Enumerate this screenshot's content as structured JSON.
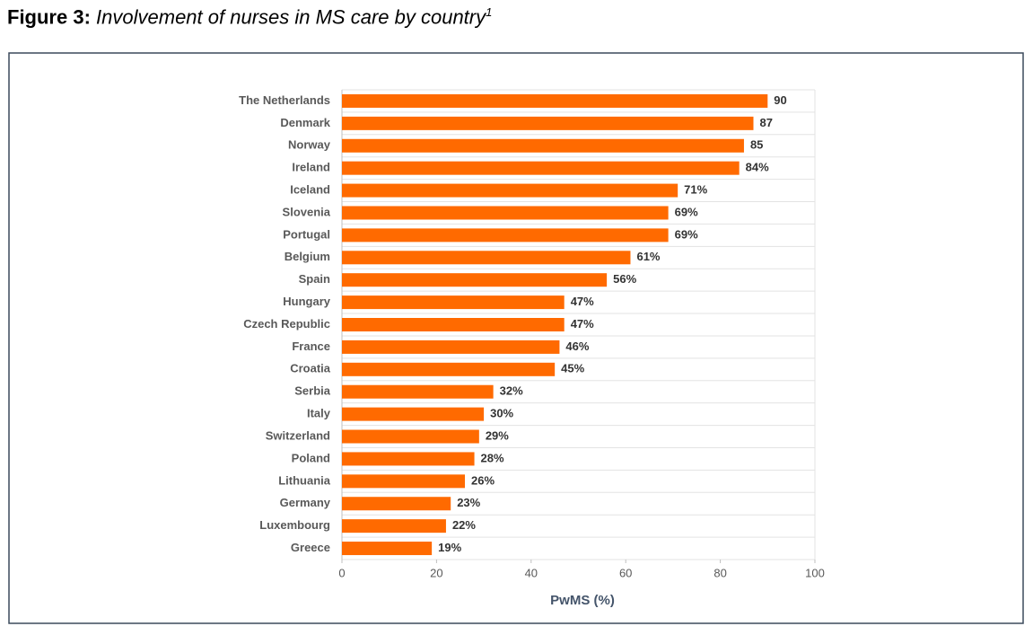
{
  "chart_data": {
    "type": "bar",
    "orientation": "horizontal",
    "figure_label": "Figure 3:",
    "title": "Involvement of nurses in MS care by country",
    "title_superscript": "1",
    "x_label": "PwMS (%)",
    "categories": [
      "The Netherlands",
      "Denmark",
      "Norway",
      "Ireland",
      "Iceland",
      "Slovenia",
      "Portugal",
      "Belgium",
      "Spain",
      "Hungary",
      "Czech Republic",
      "France",
      "Croatia",
      "Serbia",
      "Italy",
      "Switzerland",
      "Poland",
      "Lithuania",
      "Germany",
      "Luxembourg",
      "Greece"
    ],
    "values": [
      90,
      87,
      85,
      84,
      71,
      69,
      69,
      61,
      56,
      47,
      47,
      46,
      45,
      32,
      30,
      29,
      28,
      26,
      23,
      22,
      19
    ],
    "value_labels": [
      "90",
      "87",
      "85",
      "84%",
      "71%",
      "69%",
      "69%",
      "61%",
      "56%",
      "47%",
      "47%",
      "46%",
      "45%",
      "32%",
      "30%",
      "29%",
      "28%",
      "26%",
      "23%",
      "22%",
      "19%"
    ],
    "color": "#ff6a00",
    "xlim": [
      0,
      100
    ],
    "xticks": [
      0,
      20,
      40,
      60,
      80,
      100
    ]
  }
}
